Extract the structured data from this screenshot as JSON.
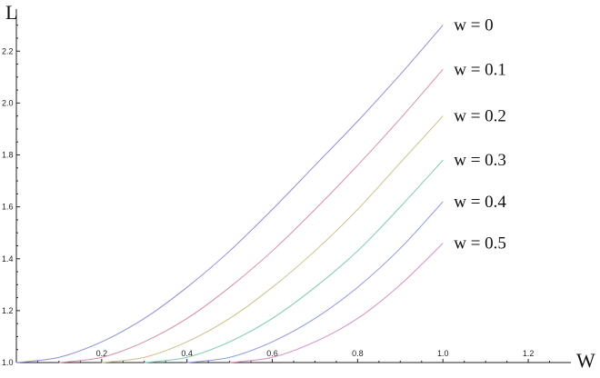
{
  "chart_data": {
    "type": "line",
    "title": "",
    "xlabel": "W",
    "ylabel": "L",
    "xlim": [
      0.0,
      1.3
    ],
    "ylim": [
      1.0,
      2.32
    ],
    "xticks": [
      0.2,
      0.4,
      0.6,
      0.8,
      1.0,
      1.2
    ],
    "xtick_labels": [
      "0.2",
      "0.4",
      "0.6",
      "0.8",
      "1.0",
      "1.2"
    ],
    "yticks": [
      1.0,
      1.2,
      1.4,
      1.6,
      1.8,
      2.0,
      2.2
    ],
    "ytick_labels": [
      "1.0",
      "1.2",
      "1.4",
      "1.6",
      "1.8",
      "2.0",
      "2.2"
    ],
    "grid": false,
    "legend": "series labels at right end of each curve",
    "series": [
      {
        "label": "w = 0",
        "color": "#8f8fd6",
        "x": [
          0.0,
          0.1,
          0.2,
          0.3,
          0.4,
          0.5,
          0.6,
          0.7,
          0.8,
          0.9,
          1.0
        ],
        "y": [
          1.0,
          1.02,
          1.08,
          1.17,
          1.29,
          1.43,
          1.59,
          1.76,
          1.93,
          2.11,
          2.3
        ]
      },
      {
        "label": "w = 0.1",
        "color": "#d68fa6",
        "x": [
          0.1,
          0.2,
          0.3,
          0.4,
          0.5,
          0.6,
          0.7,
          0.8,
          0.9,
          1.0
        ],
        "y": [
          1.0,
          1.02,
          1.08,
          1.17,
          1.29,
          1.43,
          1.59,
          1.76,
          1.94,
          2.13
        ]
      },
      {
        "label": "w = 0.2",
        "color": "#c8c28a",
        "x": [
          0.2,
          0.3,
          0.4,
          0.5,
          0.6,
          0.7,
          0.8,
          0.9,
          1.0
        ],
        "y": [
          1.0,
          1.02,
          1.08,
          1.17,
          1.29,
          1.43,
          1.59,
          1.77,
          1.95
        ]
      },
      {
        "label": "w = 0.3",
        "color": "#7fc9b8",
        "x": [
          0.3,
          0.4,
          0.5,
          0.6,
          0.7,
          0.8,
          0.9,
          1.0
        ],
        "y": [
          1.0,
          1.02,
          1.08,
          1.17,
          1.29,
          1.43,
          1.6,
          1.78
        ]
      },
      {
        "label": "w = 0.4",
        "color": "#8f98e0",
        "x": [
          0.4,
          0.5,
          0.6,
          0.7,
          0.8,
          0.9,
          1.0
        ],
        "y": [
          1.0,
          1.02,
          1.08,
          1.17,
          1.29,
          1.44,
          1.62
        ]
      },
      {
        "label": "w = 0.5",
        "color": "#d68fc0",
        "x": [
          0.5,
          0.6,
          0.7,
          0.8,
          0.9,
          1.0
        ],
        "y": [
          1.0,
          1.02,
          1.08,
          1.17,
          1.3,
          1.46
        ]
      }
    ]
  }
}
